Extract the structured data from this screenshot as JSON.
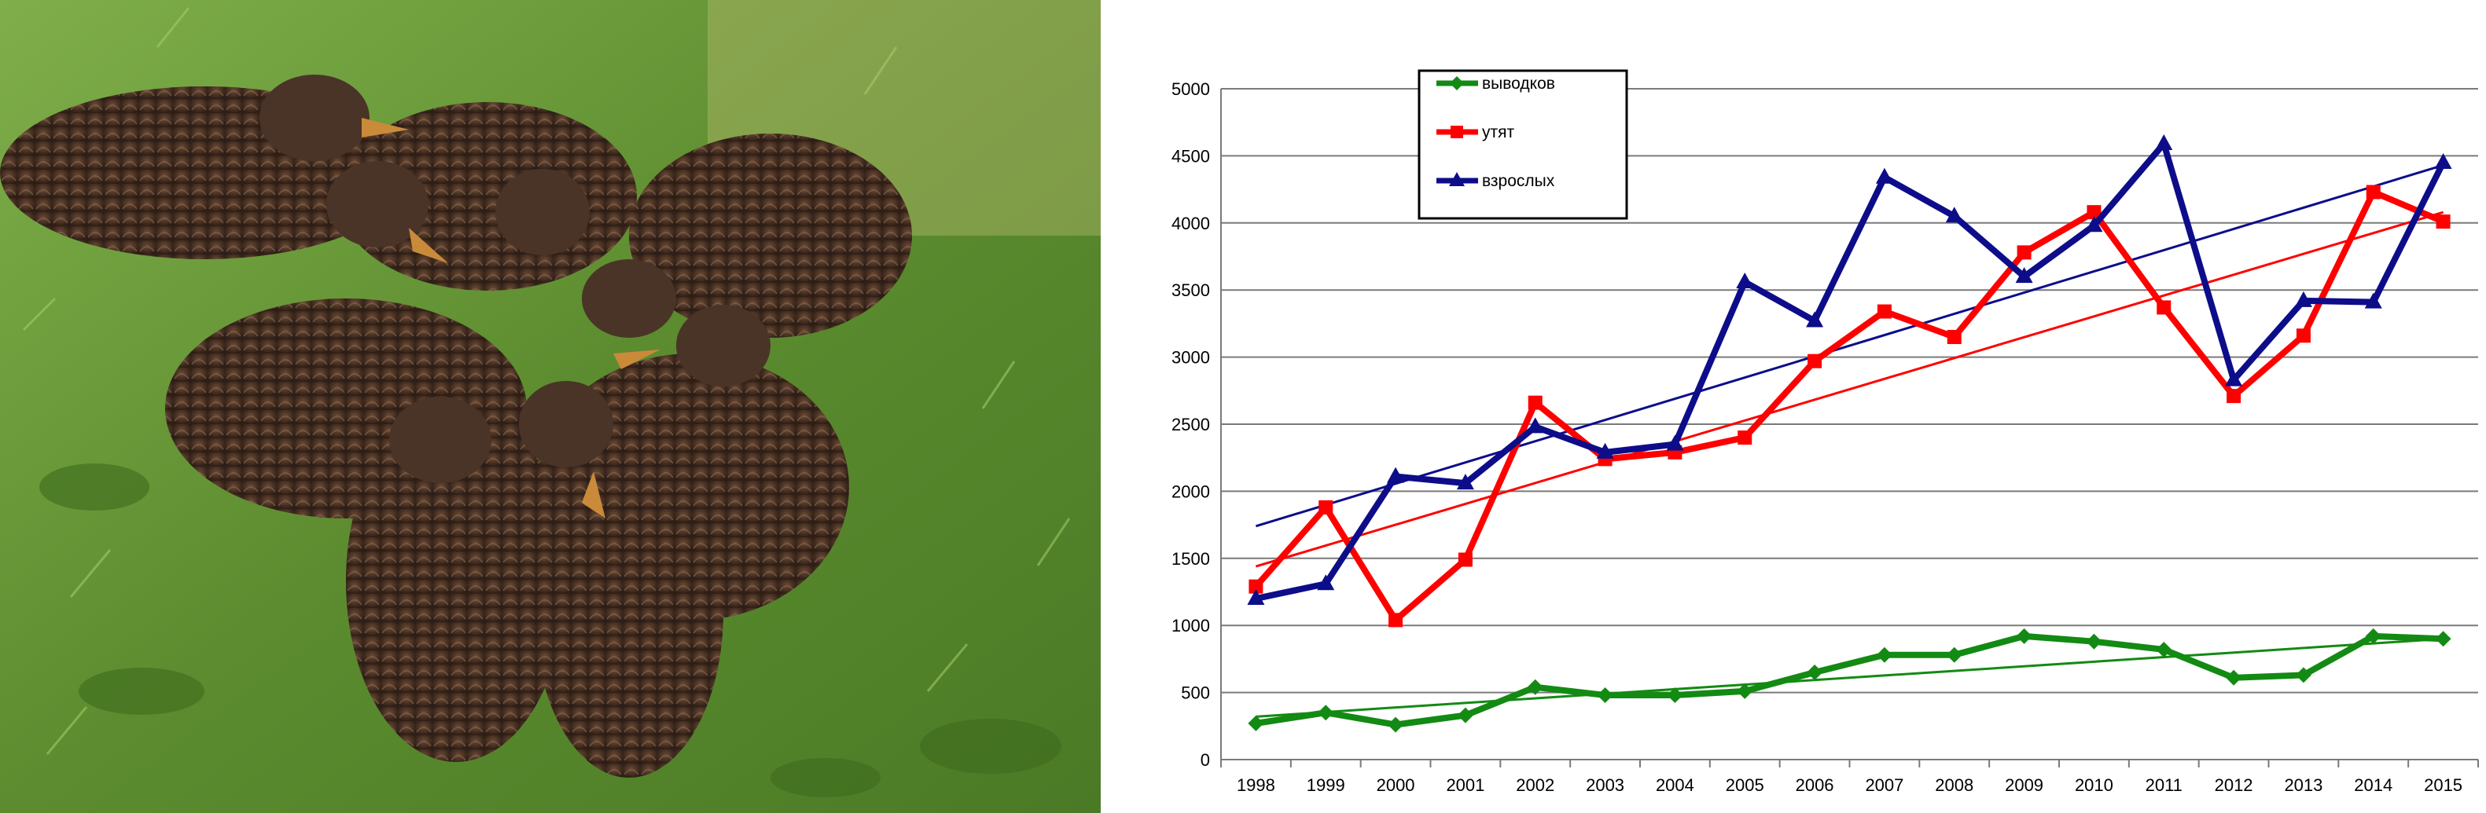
{
  "photo": {
    "subject": "mallard-ducklings-on-grass"
  },
  "chart_data": {
    "type": "line",
    "title": "",
    "xlabel": "",
    "ylabel": "",
    "ylim": [
      0,
      5000
    ],
    "yticks": [
      0,
      500,
      1000,
      1500,
      2000,
      2500,
      3000,
      3500,
      4000,
      4500,
      5000
    ],
    "grid": true,
    "legend_position": "top-left",
    "categories": [
      "1998",
      "1999",
      "2000",
      "2001",
      "2002",
      "2003",
      "2004",
      "2005",
      "2006",
      "2007",
      "2008",
      "2009",
      "2010",
      "2011",
      "2012",
      "2013",
      "2014",
      "2015"
    ],
    "series": [
      {
        "name": "выводков",
        "color": "#138a13",
        "marker": "diamond",
        "values": [
          270,
          350,
          260,
          330,
          540,
          480,
          480,
          510,
          650,
          780,
          780,
          920,
          880,
          820,
          610,
          630,
          920,
          900
        ],
        "trend": [
          320,
          900
        ]
      },
      {
        "name": "утят",
        "color": "#ff0000",
        "marker": "square",
        "values": [
          1290,
          1880,
          1040,
          1490,
          2660,
          2240,
          2290,
          2400,
          2970,
          3340,
          3150,
          3780,
          4080,
          3370,
          2710,
          3160,
          4230,
          4010
        ],
        "trend": [
          1440,
          4080
        ]
      },
      {
        "name": "взрослых",
        "color": "#0d0d8a",
        "marker": "triangle",
        "values": [
          1200,
          1310,
          2110,
          2060,
          2480,
          2290,
          2350,
          3560,
          3270,
          4340,
          4050,
          3600,
          3980,
          4590,
          2830,
          3420,
          3410,
          4450
        ],
        "trend": [
          1740,
          4430
        ]
      }
    ]
  }
}
